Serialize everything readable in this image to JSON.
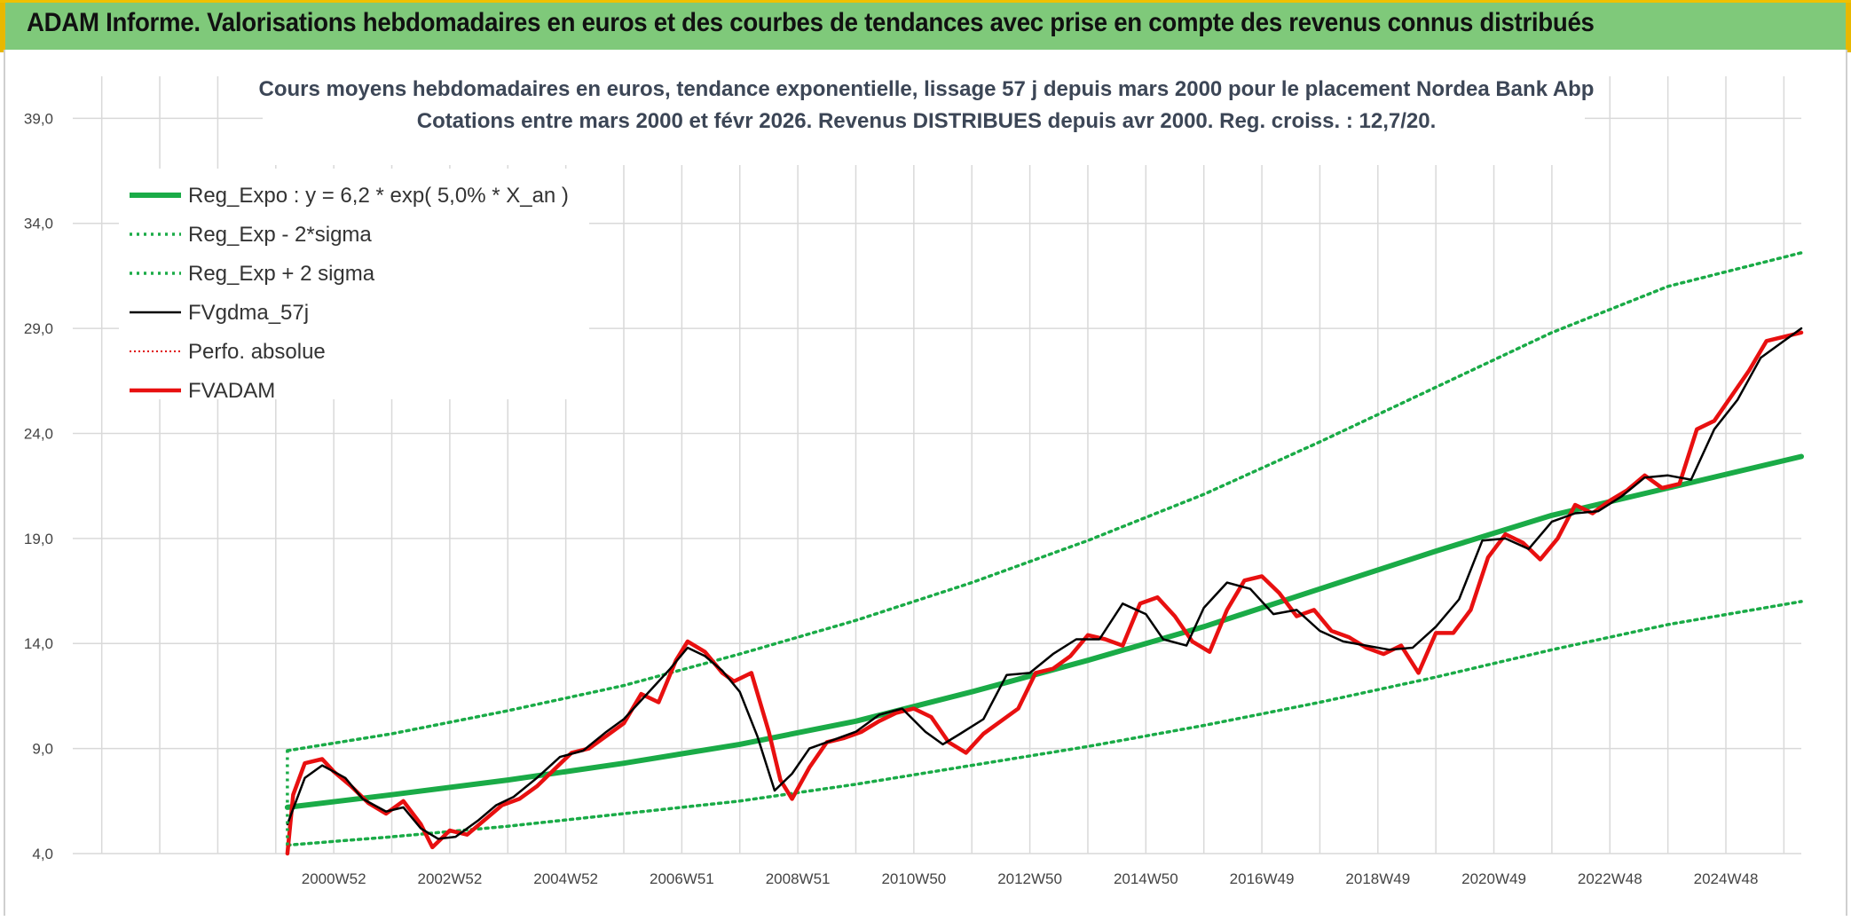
{
  "banner": {
    "title": "ADAM Informe. Valorisations hebdomadaires en euros et des courbes de tendances avec prise en compte des revenus connus distribués"
  },
  "colors": {
    "banner_bg": "#7fc97a",
    "reg_expo": "#1aab47",
    "bands": "#1aab47",
    "fvgdma": "#000000",
    "perfo": "#e00000",
    "fvadam": "#e81010"
  },
  "chart_data": {
    "type": "line",
    "title": "Cours moyens hebdomadaires en euros, tendance exponentielle, lissage 57 j depuis mars 2000 pour le placement Nordea Bank Abp",
    "subtitle": "Cotations entre mars 2000 et févr 2026. Revenus DISTRIBUES depuis avr 2000. Reg. croiss. : 12,7/20.",
    "xlabel": "",
    "ylabel": "",
    "ylim": [
      4,
      41
    ],
    "y_ticks": [
      "4,0",
      "9,0",
      "14,0",
      "19,0",
      "24,0",
      "29,0",
      "34,0",
      "39,0"
    ],
    "y_tick_values": [
      4,
      9,
      14,
      19,
      24,
      29,
      34,
      39
    ],
    "xlim": [
      1996.5,
      2026.3
    ],
    "x_ticks": [
      "2000W52",
      "2002W52",
      "2004W52",
      "2006W51",
      "2008W51",
      "2010W50",
      "2012W50",
      "2014W50",
      "2016W49",
      "2018W49",
      "2020W49",
      "2022W48",
      "2024W48"
    ],
    "x_tick_values": [
      2001.0,
      2003.0,
      2005.0,
      2007.0,
      2009.0,
      2011.0,
      2013.0,
      2015.0,
      2017.0,
      2019.0,
      2021.0,
      2023.0,
      2025.0
    ],
    "grid": true,
    "legend": "top-left",
    "legend_entries": [
      "Reg_Expo : y = 6,2 * exp( 5,0% *  X_an )",
      "Reg_Exp - 2*sigma",
      "Reg_Exp + 2 sigma",
      "FVgdma_57j",
      "Perfo. absolue",
      "FVADAM"
    ],
    "series": [
      {
        "name": "Reg_Expo : y = 6,2 * exp( 5,0% *  X_an )",
        "style": "solid-thick",
        "x": [
          2000.2,
          2002,
          2004,
          2006,
          2008,
          2010,
          2012,
          2014,
          2016,
          2018,
          2020,
          2022,
          2024,
          2026.3
        ],
        "values": [
          6.2,
          6.8,
          7.5,
          8.3,
          9.2,
          10.3,
          11.7,
          13.2,
          14.8,
          16.6,
          18.4,
          20.1,
          21.4,
          22.9
        ]
      },
      {
        "name": "Reg_Exp - 2*sigma",
        "style": "dotted",
        "x": [
          2000.2,
          2002,
          2004,
          2006,
          2008,
          2010,
          2012,
          2014,
          2016,
          2018,
          2020,
          2022,
          2024,
          2026.3
        ],
        "values": [
          4.4,
          4.8,
          5.3,
          5.9,
          6.5,
          7.3,
          8.2,
          9.1,
          10.1,
          11.2,
          12.4,
          13.7,
          14.9,
          16.0
        ]
      },
      {
        "name": "Reg_Exp + 2 sigma",
        "style": "dotted",
        "x": [
          2000.2,
          2002,
          2004,
          2006,
          2008,
          2010,
          2012,
          2014,
          2016,
          2018,
          2020,
          2022,
          2024,
          2026.3
        ],
        "values": [
          8.9,
          9.7,
          10.8,
          12.0,
          13.5,
          15.1,
          16.9,
          18.9,
          21.1,
          23.6,
          26.2,
          28.8,
          31.0,
          32.6
        ]
      },
      {
        "name": "FVgdma_57j",
        "style": "solid-thin",
        "x": [
          2000.2,
          2000.5,
          2000.8,
          2001.2,
          2001.5,
          2001.9,
          2002.2,
          2002.5,
          2002.8,
          2003.1,
          2003.5,
          2003.8,
          2004.1,
          2004.5,
          2004.9,
          2005.3,
          2005.7,
          2006.0,
          2006.4,
          2006.8,
          2007.1,
          2007.4,
          2007.7,
          2008.0,
          2008.3,
          2008.6,
          2008.9,
          2009.2,
          2009.6,
          2010.0,
          2010.4,
          2010.8,
          2011.2,
          2011.5,
          2011.8,
          2012.2,
          2012.6,
          2013.0,
          2013.4,
          2013.8,
          2014.2,
          2014.6,
          2015.0,
          2015.3,
          2015.7,
          2016.0,
          2016.4,
          2016.8,
          2017.2,
          2017.6,
          2018.0,
          2018.4,
          2018.8,
          2019.2,
          2019.6,
          2020.0,
          2020.4,
          2020.8,
          2021.2,
          2021.6,
          2022.0,
          2022.4,
          2022.8,
          2023.2,
          2023.6,
          2024.0,
          2024.4,
          2024.8,
          2025.2,
          2025.6,
          2026.0,
          2026.3
        ],
        "values": [
          5.4,
          7.6,
          8.2,
          7.6,
          6.6,
          6.0,
          6.2,
          5.2,
          4.7,
          4.8,
          5.6,
          6.3,
          6.7,
          7.6,
          8.6,
          8.9,
          9.8,
          10.4,
          11.6,
          12.8,
          13.8,
          13.4,
          12.7,
          11.7,
          9.6,
          7.0,
          7.8,
          9.0,
          9.4,
          9.8,
          10.6,
          10.9,
          9.8,
          9.2,
          9.7,
          10.4,
          12.5,
          12.6,
          13.5,
          14.2,
          14.2,
          15.9,
          15.4,
          14.2,
          13.9,
          15.7,
          16.9,
          16.6,
          15.4,
          15.6,
          14.6,
          14.1,
          13.9,
          13.7,
          13.8,
          14.8,
          16.1,
          18.9,
          19.0,
          18.5,
          19.8,
          20.2,
          20.3,
          21.0,
          21.9,
          22.0,
          21.8,
          24.2,
          25.6,
          27.6,
          28.4,
          29.0
        ]
      },
      {
        "name": "Perfo. absolue",
        "style": "dotted",
        "x": [],
        "values": []
      },
      {
        "name": "FVADAM",
        "style": "solid-thick",
        "x": [
          2000.2,
          2000.3,
          2000.5,
          2000.8,
          2001.0,
          2001.3,
          2001.6,
          2001.9,
          2002.2,
          2002.5,
          2002.7,
          2003.0,
          2003.3,
          2003.6,
          2003.9,
          2004.2,
          2004.5,
          2004.8,
          2005.1,
          2005.4,
          2005.7,
          2006.0,
          2006.3,
          2006.6,
          2006.9,
          2007.1,
          2007.4,
          2007.7,
          2007.9,
          2008.2,
          2008.5,
          2008.7,
          2008.9,
          2009.2,
          2009.5,
          2009.8,
          2010.1,
          2010.4,
          2010.7,
          2011.0,
          2011.3,
          2011.6,
          2011.9,
          2012.2,
          2012.5,
          2012.8,
          2013.1,
          2013.4,
          2013.7,
          2014.0,
          2014.3,
          2014.6,
          2014.9,
          2015.2,
          2015.5,
          2015.8,
          2016.1,
          2016.4,
          2016.7,
          2017.0,
          2017.3,
          2017.6,
          2017.9,
          2018.2,
          2018.5,
          2018.8,
          2019.1,
          2019.4,
          2019.7,
          2020.0,
          2020.3,
          2020.6,
          2020.9,
          2021.2,
          2021.5,
          2021.8,
          2022.1,
          2022.4,
          2022.7,
          2023.0,
          2023.3,
          2023.6,
          2023.9,
          2024.2,
          2024.5,
          2024.8,
          2025.1,
          2025.4,
          2025.7,
          2026.0,
          2026.3
        ],
        "values": [
          4.0,
          6.8,
          8.3,
          8.5,
          7.9,
          7.2,
          6.4,
          5.9,
          6.5,
          5.4,
          4.3,
          5.1,
          4.9,
          5.6,
          6.3,
          6.6,
          7.2,
          8.0,
          8.8,
          9.0,
          9.6,
          10.2,
          11.6,
          11.2,
          13.2,
          14.1,
          13.6,
          12.6,
          12.2,
          12.6,
          9.8,
          7.5,
          6.6,
          8.1,
          9.3,
          9.5,
          9.8,
          10.3,
          10.7,
          10.9,
          10.5,
          9.3,
          8.8,
          9.7,
          10.3,
          10.9,
          12.6,
          12.8,
          13.4,
          14.4,
          14.2,
          13.9,
          15.9,
          16.2,
          15.3,
          14.1,
          13.6,
          15.6,
          17.0,
          17.2,
          16.4,
          15.3,
          15.6,
          14.6,
          14.3,
          13.8,
          13.5,
          13.9,
          12.6,
          14.5,
          14.5,
          15.6,
          18.1,
          19.2,
          18.8,
          18.0,
          19.0,
          20.6,
          20.2,
          20.8,
          21.3,
          22.0,
          21.4,
          21.6,
          24.2,
          24.6,
          25.8,
          27.0,
          28.4,
          28.6,
          28.8
        ]
      }
    ]
  }
}
